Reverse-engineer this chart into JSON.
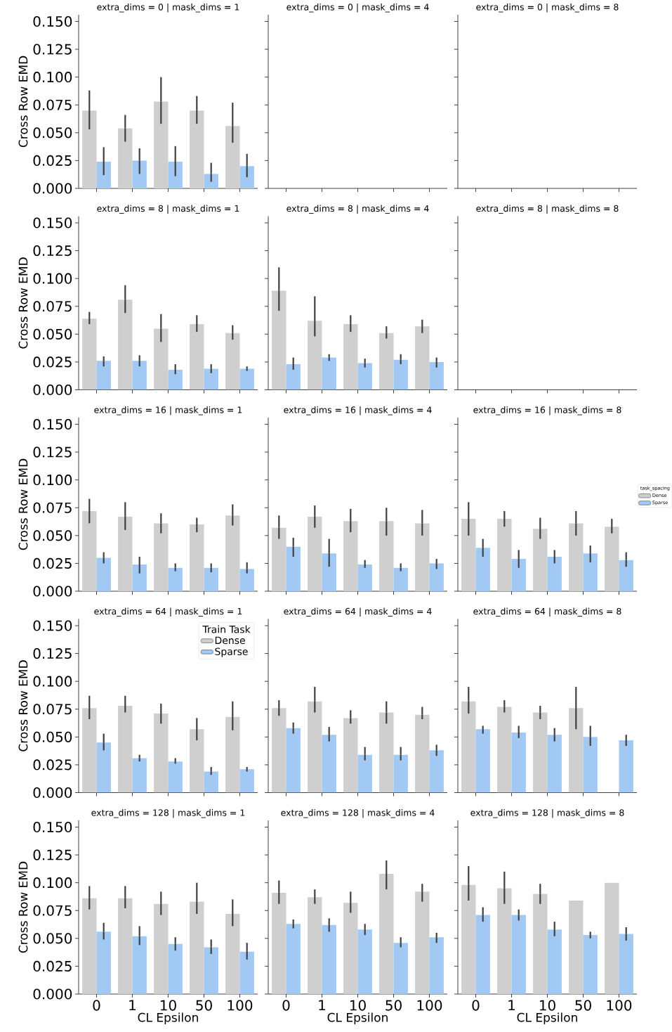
{
  "chart_data": [
    {
      "type": "bar",
      "title": "extra_dims = 0 | mask_dims = 1",
      "ylabel": "Cross Row EMD",
      "categories": [
        "0",
        "1",
        "10",
        "50",
        "100"
      ],
      "ylim": [
        0,
        0.156
      ],
      "yticks": [
        {
          "value": 0,
          "label": "0.000"
        },
        {
          "value": 0.025,
          "label": "0.025"
        },
        {
          "value": 0.05,
          "label": "0.050"
        },
        {
          "value": 0.075,
          "label": "0.075"
        },
        {
          "value": 0.1,
          "label": "0.100"
        },
        {
          "value": 0.125,
          "label": "0.125"
        },
        {
          "value": 0.15,
          "label": "0.150"
        }
      ],
      "tick_labels": "y",
      "series": [
        {
          "color": "#cfcfcf",
          "values": [
            0.07,
            0.054,
            0.078,
            0.07,
            0.056
          ],
          "errors": [
            [
              0.053,
              0.088
            ],
            [
              0.042,
              0.066
            ],
            [
              0.058,
              0.1
            ],
            [
              0.058,
              0.083
            ],
            [
              0.041,
              0.077
            ]
          ]
        },
        {
          "color": "#a1c9f4",
          "values": [
            0.024,
            0.025,
            0.024,
            0.013,
            0.02
          ],
          "errors": [
            [
              0.012,
              0.037
            ],
            [
              0.013,
              0.036
            ],
            [
              0.011,
              0.038
            ],
            [
              0.006,
              0.023
            ],
            [
              0.01,
              0.031
            ]
          ]
        }
      ]
    },
    {
      "type": "bar",
      "title": "extra_dims = 0 | mask_dims = 4",
      "categories": [
        "0",
        "1",
        "10",
        "50",
        "100"
      ],
      "ylim": [
        0,
        0.156
      ],
      "yticks": [
        0,
        0.025,
        0.05,
        0.075,
        0.1,
        0.125,
        0.15
      ],
      "tick_labels": false,
      "values": [
        null,
        null,
        null,
        null,
        null
      ]
    },
    {
      "type": "bar",
      "title": "extra_dims = 0 | mask_dims = 8",
      "categories": [
        "0",
        "1",
        "10",
        "50",
        "100"
      ],
      "ylim": [
        0,
        0.156
      ],
      "yticks": [
        0,
        0.025,
        0.05,
        0.075,
        0.1,
        0.125,
        0.15
      ],
      "tick_labels": false,
      "values": [
        null,
        null,
        null,
        null,
        null
      ]
    },
    {
      "type": "bar",
      "title": "extra_dims = 8 | mask_dims = 1",
      "ylabel": "Cross Row EMD",
      "categories": [
        "0",
        "1",
        "10",
        "50",
        "100"
      ],
      "ylim": [
        0,
        0.156
      ],
      "yticks": [
        {
          "value": 0,
          "label": "0.000"
        },
        {
          "value": 0.025,
          "label": "0.025"
        },
        {
          "value": 0.05,
          "label": "0.050"
        },
        {
          "value": 0.075,
          "label": "0.075"
        },
        {
          "value": 0.1,
          "label": "0.100"
        },
        {
          "value": 0.125,
          "label": "0.125"
        },
        {
          "value": 0.15,
          "label": "0.150"
        }
      ],
      "tick_labels": "y",
      "series": [
        {
          "color": "#cfcfcf",
          "values": [
            0.064,
            0.081,
            0.055,
            0.059,
            0.051
          ],
          "errors": [
            [
              0.059,
              0.07
            ],
            [
              0.069,
              0.094
            ],
            [
              0.043,
              0.068
            ],
            [
              0.052,
              0.067
            ],
            [
              0.045,
              0.058
            ]
          ]
        },
        {
          "color": "#a1c9f4",
          "values": [
            0.026,
            0.026,
            0.018,
            0.019,
            0.019
          ],
          "errors": [
            [
              0.021,
              0.03
            ],
            [
              0.021,
              0.031
            ],
            [
              0.014,
              0.023
            ],
            [
              0.015,
              0.023
            ],
            [
              0.017,
              0.021
            ]
          ]
        }
      ]
    },
    {
      "type": "bar",
      "title": "extra_dims = 8 | mask_dims = 4",
      "categories": [
        "0",
        "1",
        "10",
        "50",
        "100"
      ],
      "ylim": [
        0,
        0.156
      ],
      "yticks": [
        0,
        0.025,
        0.05,
        0.075,
        0.1,
        0.125,
        0.15
      ],
      "tick_labels": false,
      "series": [
        {
          "color": "#cfcfcf",
          "values": [
            0.089,
            0.062,
            0.059,
            0.051,
            0.057
          ],
          "errors": [
            [
              0.071,
              0.11
            ],
            [
              0.048,
              0.084
            ],
            [
              0.052,
              0.067
            ],
            [
              0.046,
              0.057
            ],
            [
              0.051,
              0.063
            ]
          ]
        },
        {
          "color": "#a1c9f4",
          "values": [
            0.023,
            0.029,
            0.024,
            0.027,
            0.025
          ],
          "errors": [
            [
              0.018,
              0.029
            ],
            [
              0.026,
              0.032
            ],
            [
              0.02,
              0.028
            ],
            [
              0.023,
              0.032
            ],
            [
              0.02,
              0.029
            ]
          ]
        }
      ]
    },
    {
      "type": "bar",
      "title": "extra_dims = 8 | mask_dims = 8",
      "categories": [
        "0",
        "1",
        "10",
        "50",
        "100"
      ],
      "ylim": [
        0,
        0.156
      ],
      "yticks": [
        0,
        0.025,
        0.05,
        0.075,
        0.1,
        0.125,
        0.15
      ],
      "tick_labels": false,
      "values": [
        null,
        null,
        null,
        null,
        null
      ]
    },
    {
      "type": "bar",
      "title": "extra_dims = 16 | mask_dims = 1",
      "ylabel": "Cross Row EMD",
      "categories": [
        "0",
        "1",
        "10",
        "50",
        "100"
      ],
      "ylim": [
        0,
        0.156
      ],
      "yticks": [
        {
          "value": 0,
          "label": "0.000"
        },
        {
          "value": 0.025,
          "label": "0.025"
        },
        {
          "value": 0.05,
          "label": "0.050"
        },
        {
          "value": 0.075,
          "label": "0.075"
        },
        {
          "value": 0.1,
          "label": "0.100"
        },
        {
          "value": 0.125,
          "label": "0.125"
        },
        {
          "value": 0.15,
          "label": "0.150"
        }
      ],
      "tick_labels": "y",
      "series": [
        {
          "color": "#cfcfcf",
          "values": [
            0.072,
            0.067,
            0.061,
            0.06,
            0.068
          ],
          "errors": [
            [
              0.061,
              0.083
            ],
            [
              0.055,
              0.08
            ],
            [
              0.052,
              0.07
            ],
            [
              0.053,
              0.066
            ],
            [
              0.059,
              0.078
            ]
          ]
        },
        {
          "color": "#a1c9f4",
          "values": [
            0.03,
            0.024,
            0.021,
            0.021,
            0.02
          ],
          "errors": [
            [
              0.025,
              0.035
            ],
            [
              0.016,
              0.031
            ],
            [
              0.018,
              0.025
            ],
            [
              0.017,
              0.025
            ],
            [
              0.016,
              0.026
            ]
          ]
        }
      ]
    },
    {
      "type": "bar",
      "title": "extra_dims = 16 | mask_dims = 4",
      "categories": [
        "0",
        "1",
        "10",
        "50",
        "100"
      ],
      "ylim": [
        0,
        0.156
      ],
      "yticks": [
        0,
        0.025,
        0.05,
        0.075,
        0.1,
        0.125,
        0.15
      ],
      "tick_labels": false,
      "series": [
        {
          "color": "#cfcfcf",
          "values": [
            0.057,
            0.067,
            0.063,
            0.063,
            0.061
          ],
          "errors": [
            [
              0.047,
              0.068
            ],
            [
              0.057,
              0.077
            ],
            [
              0.053,
              0.074
            ],
            [
              0.05,
              0.075
            ],
            [
              0.05,
              0.073
            ]
          ]
        },
        {
          "color": "#a1c9f4",
          "values": [
            0.04,
            0.034,
            0.024,
            0.021,
            0.025
          ],
          "errors": [
            [
              0.031,
              0.048
            ],
            [
              0.022,
              0.047
            ],
            [
              0.021,
              0.028
            ],
            [
              0.018,
              0.025
            ],
            [
              0.02,
              0.029
            ]
          ]
        }
      ]
    },
    {
      "type": "bar",
      "title": "extra_dims = 16 | mask_dims = 8",
      "categories": [
        "0",
        "1",
        "10",
        "50",
        "100"
      ],
      "ylim": [
        0,
        0.156
      ],
      "yticks": [
        0,
        0.025,
        0.05,
        0.075,
        0.1,
        0.125,
        0.15
      ],
      "tick_labels": false,
      "legend": "right",
      "legend_title": "task_spacing",
      "series": [
        {
          "name": "Dense",
          "color": "#cfcfcf",
          "values": [
            0.065,
            0.065,
            0.056,
            0.061,
            0.058
          ],
          "errors": [
            [
              0.05,
              0.08
            ],
            [
              0.058,
              0.072
            ],
            [
              0.047,
              0.066
            ],
            [
              0.05,
              0.072
            ],
            [
              0.052,
              0.065
            ]
          ]
        },
        {
          "name": "Sparse",
          "color": "#a1c9f4",
          "values": [
            0.039,
            0.029,
            0.031,
            0.034,
            0.028
          ],
          "errors": [
            [
              0.031,
              0.047
            ],
            [
              0.021,
              0.037
            ],
            [
              0.025,
              0.037
            ],
            [
              0.026,
              0.041
            ],
            [
              0.022,
              0.035
            ]
          ]
        }
      ]
    },
    {
      "type": "bar",
      "title": "extra_dims = 64 | mask_dims = 1",
      "ylabel": "Cross Row EMD",
      "categories": [
        "0",
        "1",
        "10",
        "50",
        "100"
      ],
      "ylim": [
        0,
        0.156
      ],
      "yticks": [
        {
          "value": 0,
          "label": "0.000"
        },
        {
          "value": 0.025,
          "label": "0.025"
        },
        {
          "value": 0.05,
          "label": "0.050"
        },
        {
          "value": 0.075,
          "label": "0.075"
        },
        {
          "value": 0.1,
          "label": "0.100"
        },
        {
          "value": 0.125,
          "label": "0.125"
        },
        {
          "value": 0.15,
          "label": "0.150"
        }
      ],
      "tick_labels": "y",
      "legend": "top right",
      "legend_title": "Train Task",
      "series": [
        {
          "name": "Dense",
          "color": "#cfcfcf",
          "values": [
            0.076,
            0.078,
            0.071,
            0.057,
            0.068
          ],
          "errors": [
            [
              0.066,
              0.087
            ],
            [
              0.072,
              0.087
            ],
            [
              0.062,
              0.08
            ],
            [
              0.047,
              0.067
            ],
            [
              0.056,
              0.082
            ]
          ]
        },
        {
          "name": "Sparse",
          "color": "#a1c9f4",
          "values": [
            0.045,
            0.031,
            0.028,
            0.019,
            0.021
          ],
          "errors": [
            [
              0.038,
              0.053
            ],
            [
              0.028,
              0.034
            ],
            [
              0.026,
              0.031
            ],
            [
              0.016,
              0.023
            ],
            [
              0.019,
              0.023
            ]
          ]
        }
      ]
    },
    {
      "type": "bar",
      "title": "extra_dims = 64 | mask_dims = 4",
      "categories": [
        "0",
        "1",
        "10",
        "50",
        "100"
      ],
      "ylim": [
        0,
        0.156
      ],
      "yticks": [
        0,
        0.025,
        0.05,
        0.075,
        0.1,
        0.125,
        0.15
      ],
      "tick_labels": false,
      "series": [
        {
          "color": "#cfcfcf",
          "values": [
            0.076,
            0.082,
            0.067,
            0.072,
            0.07
          ],
          "errors": [
            [
              0.069,
              0.083
            ],
            [
              0.072,
              0.095
            ],
            [
              0.062,
              0.074
            ],
            [
              0.062,
              0.082
            ],
            [
              0.066,
              0.077
            ]
          ]
        },
        {
          "color": "#a1c9f4",
          "values": [
            0.058,
            0.052,
            0.034,
            0.034,
            0.038
          ],
          "errors": [
            [
              0.053,
              0.063
            ],
            [
              0.046,
              0.059
            ],
            [
              0.029,
              0.041
            ],
            [
              0.029,
              0.041
            ],
            [
              0.033,
              0.043
            ]
          ]
        }
      ]
    },
    {
      "type": "bar",
      "title": "extra_dims = 64 | mask_dims = 8",
      "categories": [
        "0",
        "1",
        "10",
        "50",
        "100"
      ],
      "ylim": [
        0,
        0.156
      ],
      "yticks": [
        0,
        0.025,
        0.05,
        0.075,
        0.1,
        0.125,
        0.15
      ],
      "tick_labels": false,
      "series": [
        {
          "color": "#cfcfcf",
          "values": [
            0.082,
            0.077,
            0.072,
            0.076,
            null
          ],
          "errors": [
            [
              0.071,
              0.095
            ],
            [
              0.072,
              0.083
            ],
            [
              0.066,
              0.078
            ],
            [
              0.057,
              0.095
            ],
            null
          ]
        },
        {
          "color": "#a1c9f4",
          "values": [
            0.057,
            0.054,
            0.052,
            0.05,
            0.047
          ],
          "errors": [
            [
              0.053,
              0.06
            ],
            [
              0.049,
              0.06
            ],
            [
              0.046,
              0.058
            ],
            [
              0.042,
              0.06
            ],
            [
              0.042,
              0.052
            ]
          ]
        }
      ]
    },
    {
      "type": "bar",
      "title": "extra_dims = 128 | mask_dims = 1",
      "xlabel": "CL Epsilon",
      "ylabel": "Cross Row EMD",
      "categories": [
        "0",
        "1",
        "10",
        "50",
        "100"
      ],
      "ylim": [
        0,
        0.156
      ],
      "yticks": [
        {
          "value": 0,
          "label": "0.000"
        },
        {
          "value": 0.025,
          "label": "0.025"
        },
        {
          "value": 0.05,
          "label": "0.050"
        },
        {
          "value": 0.075,
          "label": "0.075"
        },
        {
          "value": 0.1,
          "label": "0.100"
        },
        {
          "value": 0.125,
          "label": "0.125"
        },
        {
          "value": 0.15,
          "label": "0.150"
        }
      ],
      "series": [
        {
          "color": "#cfcfcf",
          "values": [
            0.086,
            0.086,
            0.081,
            0.083,
            0.072
          ],
          "errors": [
            [
              0.076,
              0.097
            ],
            [
              0.077,
              0.097
            ],
            [
              0.071,
              0.092
            ],
            [
              0.072,
              0.1
            ],
            [
              0.061,
              0.085
            ]
          ]
        },
        {
          "color": "#a1c9f4",
          "values": [
            0.056,
            0.052,
            0.045,
            0.042,
            0.038
          ],
          "errors": [
            [
              0.049,
              0.064
            ],
            [
              0.044,
              0.061
            ],
            [
              0.039,
              0.051
            ],
            [
              0.036,
              0.049
            ],
            [
              0.031,
              0.046
            ]
          ]
        }
      ]
    },
    {
      "type": "bar",
      "title": "extra_dims = 128 | mask_dims = 4",
      "xlabel": "CL Epsilon",
      "categories": [
        "0",
        "1",
        "10",
        "50",
        "100"
      ],
      "ylim": [
        0,
        0.156
      ],
      "yticks": [
        0,
        0.025,
        0.05,
        0.075,
        0.1,
        0.125,
        0.15
      ],
      "tick_labels": "x",
      "series": [
        {
          "color": "#cfcfcf",
          "values": [
            0.091,
            0.087,
            0.082,
            0.108,
            0.092
          ],
          "errors": [
            [
              0.081,
              0.102
            ],
            [
              0.081,
              0.094
            ],
            [
              0.073,
              0.092
            ],
            [
              0.094,
              0.12
            ],
            [
              0.083,
              0.099
            ]
          ]
        },
        {
          "color": "#a1c9f4",
          "values": [
            0.063,
            0.062,
            0.058,
            0.046,
            0.051
          ],
          "errors": [
            [
              0.059,
              0.067
            ],
            [
              0.056,
              0.068
            ],
            [
              0.053,
              0.063
            ],
            [
              0.042,
              0.051
            ],
            [
              0.046,
              0.055
            ]
          ]
        }
      ]
    },
    {
      "type": "bar",
      "title": "extra_dims = 128 | mask_dims = 8",
      "xlabel": "CL Epsilon",
      "categories": [
        "0",
        "1",
        "10",
        "50",
        "100"
      ],
      "ylim": [
        0,
        0.156
      ],
      "yticks": [
        0,
        0.025,
        0.05,
        0.075,
        0.1,
        0.125,
        0.15
      ],
      "tick_labels": "x",
      "series": [
        {
          "color": "#cfcfcf",
          "values": [
            0.098,
            0.095,
            0.09,
            0.084,
            0.1
          ],
          "errors": [
            [
              0.084,
              0.115
            ],
            [
              0.081,
              0.11
            ],
            [
              0.081,
              0.099
            ],
            null,
            null
          ]
        },
        {
          "color": "#a1c9f4",
          "values": [
            0.071,
            0.071,
            0.058,
            0.053,
            0.054
          ],
          "errors": [
            [
              0.065,
              0.078
            ],
            [
              0.066,
              0.076
            ],
            [
              0.052,
              0.065
            ],
            [
              0.05,
              0.056
            ],
            [
              0.048,
              0.06
            ]
          ]
        }
      ]
    }
  ]
}
